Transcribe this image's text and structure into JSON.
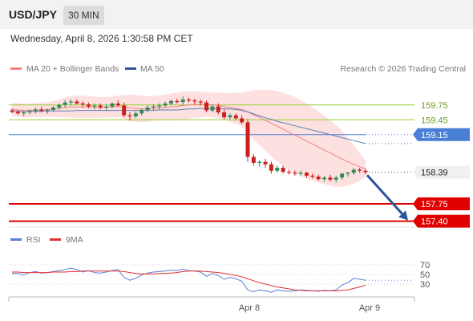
{
  "header": {
    "symbol": "USD/JPY",
    "timeframe": "30 MIN"
  },
  "timestamp": "Wednesday, April 8, 2026 1:30:58 PM CET",
  "legend": [
    {
      "label": "MA 20 + Bollinger Bands",
      "color": "#f08080"
    },
    {
      "label": "MA 50",
      "color": "#2f5597"
    }
  ],
  "copyright": "Research © 2026 Trading Central",
  "colors": {
    "up": "#2e8b57",
    "down": "#cc1f1f",
    "band": "#fde0e0",
    "ma20": "#f08080",
    "ma50": "#5b7fb4",
    "rsi": "#5b7fd6",
    "rsi_ma": "#e03030",
    "resistance": "#9acd32",
    "pivot": "#4a7fd6",
    "support": "#e00000",
    "arrow": "#2a5599"
  },
  "chart_data": [
    {
      "type": "candlestick",
      "ylim": [
        157.15,
        160.25
      ],
      "x_ticks": [
        "Apr 8",
        "Apr 9"
      ],
      "levels": [
        {
          "label": "159.75",
          "value": 159.75,
          "kind": "resistance"
        },
        {
          "label": "159.45",
          "value": 159.45,
          "kind": "resistance"
        },
        {
          "label": "159.15",
          "value": 159.15,
          "kind": "pivot"
        },
        {
          "label": "158.39",
          "value": 158.39,
          "kind": "last"
        },
        {
          "label": "157.75",
          "value": 157.75,
          "kind": "support"
        },
        {
          "label": "157.40",
          "value": 157.4,
          "kind": "support"
        }
      ],
      "candles": [
        [
          159.64,
          159.68,
          159.58,
          159.61
        ],
        [
          159.61,
          159.65,
          159.55,
          159.58
        ],
        [
          159.58,
          159.62,
          159.52,
          159.6
        ],
        [
          159.6,
          159.66,
          159.56,
          159.62
        ],
        [
          159.62,
          159.7,
          159.58,
          159.66
        ],
        [
          159.66,
          159.72,
          159.6,
          159.63
        ],
        [
          159.63,
          159.68,
          159.57,
          159.65
        ],
        [
          159.65,
          159.73,
          159.61,
          159.7
        ],
        [
          159.7,
          159.78,
          159.66,
          159.75
        ],
        [
          159.75,
          159.85,
          159.7,
          159.8
        ],
        [
          159.8,
          159.86,
          159.74,
          159.82
        ],
        [
          159.82,
          159.86,
          159.76,
          159.78
        ],
        [
          159.78,
          159.82,
          159.7,
          159.76
        ],
        [
          159.76,
          159.8,
          159.68,
          159.72
        ],
        [
          159.72,
          159.78,
          159.66,
          159.74
        ],
        [
          159.74,
          159.78,
          159.66,
          159.7
        ],
        [
          159.7,
          159.76,
          159.64,
          159.72
        ],
        [
          159.72,
          159.8,
          159.68,
          159.78
        ],
        [
          159.78,
          159.84,
          159.72,
          159.74
        ],
        [
          159.74,
          159.8,
          159.5,
          159.54
        ],
        [
          159.54,
          159.6,
          159.44,
          159.52
        ],
        [
          159.52,
          159.62,
          159.48,
          159.58
        ],
        [
          159.58,
          159.68,
          159.54,
          159.65
        ],
        [
          159.65,
          159.74,
          159.6,
          159.7
        ],
        [
          159.7,
          159.76,
          159.64,
          159.72
        ],
        [
          159.72,
          159.78,
          159.66,
          159.74
        ],
        [
          159.74,
          159.82,
          159.7,
          159.78
        ],
        [
          159.78,
          159.86,
          159.74,
          159.83
        ],
        [
          159.83,
          159.88,
          159.78,
          159.81
        ],
        [
          159.81,
          159.92,
          159.76,
          159.86
        ],
        [
          159.86,
          159.9,
          159.8,
          159.84
        ],
        [
          159.84,
          159.88,
          159.76,
          159.82
        ],
        [
          159.82,
          159.86,
          159.74,
          159.8
        ],
        [
          159.8,
          159.84,
          159.6,
          159.64
        ],
        [
          159.64,
          159.76,
          159.6,
          159.72
        ],
        [
          159.72,
          159.78,
          159.56,
          159.6
        ],
        [
          159.6,
          159.66,
          159.46,
          159.5
        ],
        [
          159.5,
          159.58,
          159.46,
          159.54
        ],
        [
          159.54,
          159.58,
          159.44,
          159.48
        ],
        [
          159.48,
          159.54,
          159.36,
          159.4
        ],
        [
          159.4,
          159.46,
          158.6,
          158.7
        ],
        [
          158.7,
          158.76,
          158.52,
          158.58
        ],
        [
          158.58,
          158.64,
          158.5,
          158.6
        ],
        [
          158.6,
          158.66,
          158.48,
          158.55
        ],
        [
          158.55,
          158.6,
          158.36,
          158.42
        ],
        [
          158.42,
          158.52,
          158.38,
          158.48
        ],
        [
          158.48,
          158.52,
          158.36,
          158.4
        ],
        [
          158.4,
          158.44,
          158.34,
          158.38
        ],
        [
          158.38,
          158.42,
          158.32,
          158.36
        ],
        [
          158.36,
          158.42,
          158.32,
          158.38
        ],
        [
          158.38,
          158.4,
          158.28,
          158.32
        ],
        [
          158.32,
          158.36,
          158.26,
          158.3
        ],
        [
          158.3,
          158.34,
          158.22,
          158.25
        ],
        [
          158.25,
          158.32,
          158.2,
          158.28
        ],
        [
          158.28,
          158.34,
          158.2,
          158.24
        ],
        [
          158.24,
          158.32,
          158.18,
          158.28
        ],
        [
          158.28,
          158.38,
          158.24,
          158.36
        ],
        [
          158.36,
          158.4,
          158.3,
          158.38
        ],
        [
          158.38,
          158.48,
          158.34,
          158.44
        ],
        [
          158.44,
          158.48,
          158.38,
          158.42
        ],
        [
          158.42,
          158.46,
          158.34,
          158.39
        ]
      ],
      "ma20": [
        159.66,
        159.65,
        159.64,
        159.64,
        159.65,
        159.65,
        159.66,
        159.67,
        159.68,
        159.7,
        159.71,
        159.71,
        159.71,
        159.71,
        159.7,
        159.7,
        159.7,
        159.71,
        159.72,
        159.71,
        159.69,
        159.68,
        159.67,
        159.67,
        159.68,
        159.69,
        159.7,
        159.71,
        159.72,
        159.74,
        159.75,
        159.76,
        159.76,
        159.76,
        159.75,
        159.74,
        159.72,
        159.7,
        159.68,
        159.66,
        159.61,
        159.55,
        159.5,
        159.44,
        159.38,
        159.32,
        159.26,
        159.2,
        159.14,
        159.08,
        159.02,
        158.96,
        158.9,
        158.84,
        158.78,
        158.72,
        158.66,
        158.6,
        158.55,
        158.5,
        158.46
      ],
      "band_upper": [
        159.8,
        159.79,
        159.78,
        159.78,
        159.79,
        159.8,
        159.81,
        159.83,
        159.86,
        159.9,
        159.93,
        159.94,
        159.94,
        159.93,
        159.92,
        159.91,
        159.91,
        159.92,
        159.94,
        159.95,
        159.96,
        159.95,
        159.94,
        159.93,
        159.93,
        159.94,
        159.96,
        159.98,
        160.0,
        160.02,
        160.03,
        160.03,
        160.02,
        160.01,
        160.0,
        160.0,
        159.99,
        159.99,
        160.0,
        160.0,
        160.03,
        160.05,
        160.06,
        160.06,
        160.05,
        160.03,
        160.0,
        159.96,
        159.91,
        159.85,
        159.78,
        159.7,
        159.62,
        159.53,
        159.44,
        159.35,
        159.22,
        159.08,
        158.94,
        158.78,
        158.62
      ],
      "band_lower": [
        159.52,
        159.51,
        159.5,
        159.5,
        159.51,
        159.5,
        159.51,
        159.51,
        159.5,
        159.5,
        159.49,
        159.48,
        159.48,
        159.49,
        159.48,
        159.49,
        159.49,
        159.5,
        159.5,
        159.47,
        159.42,
        159.41,
        159.4,
        159.41,
        159.43,
        159.44,
        159.44,
        159.44,
        159.44,
        159.46,
        159.47,
        159.49,
        159.5,
        159.51,
        159.5,
        159.48,
        159.45,
        159.41,
        159.36,
        159.32,
        159.19,
        159.05,
        158.94,
        158.82,
        158.71,
        158.61,
        158.52,
        158.44,
        158.37,
        158.31,
        158.26,
        158.22,
        158.18,
        158.15,
        158.12,
        158.09,
        158.1,
        158.12,
        158.16,
        158.22,
        158.3
      ],
      "ma50": [
        159.62,
        159.62,
        159.62,
        159.62,
        159.62,
        159.62,
        159.63,
        159.63,
        159.63,
        159.63,
        159.63,
        159.64,
        159.64,
        159.64,
        159.64,
        159.64,
        159.64,
        159.64,
        159.64,
        159.64,
        159.64,
        159.64,
        159.64,
        159.64,
        159.64,
        159.65,
        159.65,
        159.65,
        159.65,
        159.66,
        159.67,
        159.67,
        159.68,
        159.68,
        159.68,
        159.68,
        159.67,
        159.67,
        159.66,
        159.64,
        159.61,
        159.57,
        159.53,
        159.49,
        159.46,
        159.42,
        159.39,
        159.36,
        159.33,
        159.3,
        159.27,
        159.24,
        159.21,
        159.18,
        159.15,
        159.12,
        159.09,
        159.06,
        159.03,
        159.0,
        158.97
      ],
      "forecast": {
        "from": 158.38,
        "to": 157.4
      }
    },
    {
      "type": "line",
      "legend": [
        "RSI",
        "9MA"
      ],
      "ylim": [
        0,
        100
      ],
      "y_ticks": [
        70,
        50,
        30
      ],
      "series": [
        {
          "name": "RSI",
          "values": [
            52,
            52,
            49,
            54,
            56,
            53,
            54,
            56,
            58,
            60,
            63,
            60,
            55,
            58,
            54,
            53,
            55,
            58,
            60,
            44,
            38,
            42,
            49,
            53,
            55,
            56,
            57,
            59,
            58,
            61,
            58,
            57,
            55,
            46,
            52,
            48,
            40,
            44,
            41,
            36,
            18,
            14,
            18,
            16,
            13,
            18,
            16,
            15,
            16,
            18,
            17,
            16,
            15,
            17,
            16,
            18,
            28,
            33,
            42,
            40,
            38
          ]
        },
        {
          "name": "9MA",
          "values": [
            55,
            55,
            54,
            54,
            54,
            54,
            54,
            55,
            55,
            55,
            56,
            56,
            57,
            57,
            57,
            57,
            57,
            57,
            57,
            56,
            54,
            52,
            51,
            51,
            51,
            52,
            52,
            53,
            54,
            56,
            57,
            57,
            57,
            56,
            55,
            54,
            52,
            50,
            48,
            45,
            41,
            37,
            33,
            30,
            27,
            24,
            22,
            20,
            18,
            17,
            16,
            16,
            16,
            16,
            16,
            16,
            17,
            18,
            21,
            24,
            28
          ]
        }
      ]
    }
  ]
}
